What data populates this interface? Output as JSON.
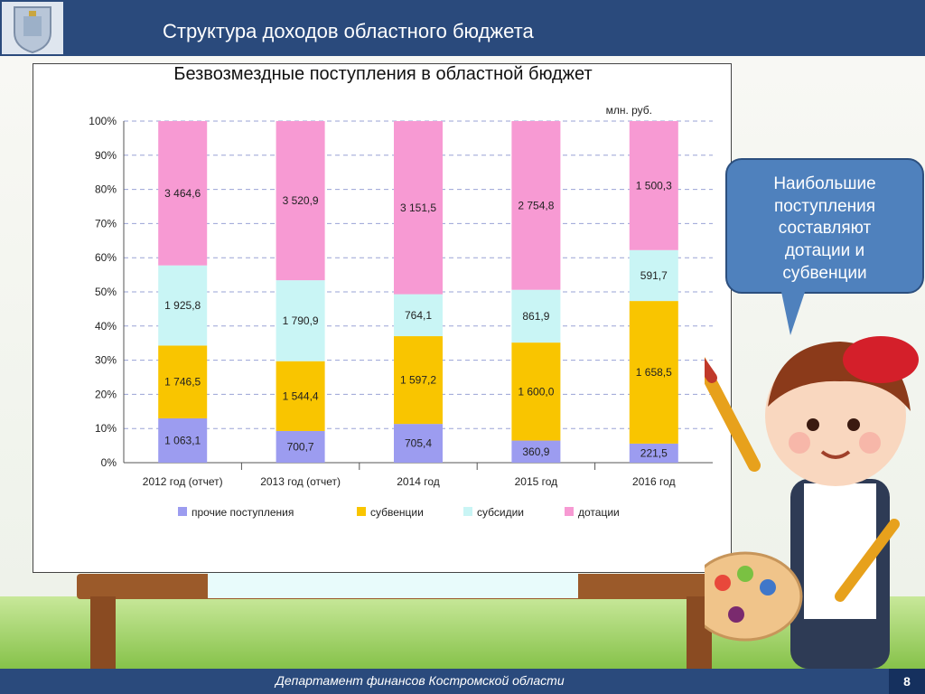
{
  "header": {
    "title": "Структура доходов областного бюджета"
  },
  "footer": {
    "text": "Департамент финансов  Костромской области",
    "page_number": "8"
  },
  "callout": {
    "lines": [
      "Наибольшие",
      "поступления",
      "составляют",
      "дотации и",
      "субвенции"
    ]
  },
  "colors": {
    "header_bg": "#2a4a7c",
    "callout_bg": "#4f81bd",
    "прочие": "#9c9cf0",
    "субвенции": "#f9c500",
    "субсидии": "#c9f5f5",
    "дотации": "#f79ad3"
  },
  "chart_data": {
    "type": "bar",
    "stacked": true,
    "normalized": true,
    "title": "Безвозмездные поступления в областной бюджет",
    "unit_label": "млн. руб.",
    "categories": [
      "2012 год (отчет)",
      "2013 год (отчет)",
      "2014 год",
      "2015 год",
      "2016 год"
    ],
    "series": [
      {
        "name": "прочие поступления",
        "values": [
          1063.1,
          700.7,
          705.4,
          360.9,
          221.5
        ],
        "labels": [
          "1 063,1",
          "700,7",
          "705,4",
          "360,9",
          "221,5"
        ],
        "color": "#9c9cf0"
      },
      {
        "name": "субвенции",
        "values": [
          1746.5,
          1544.4,
          1597.2,
          1600.0,
          1658.5
        ],
        "labels": [
          "1 746,5",
          "1 544,4",
          "1 597,2",
          "1 600,0",
          "1 658,5"
        ],
        "color": "#f9c500"
      },
      {
        "name": "субсидии",
        "values": [
          1925.8,
          1790.9,
          764.1,
          861.9,
          591.7
        ],
        "labels": [
          "1 925,8",
          "1 790,9",
          "764,1",
          "861,9",
          "591,7"
        ],
        "color": "#c9f5f5"
      },
      {
        "name": "дотации",
        "values": [
          3464.6,
          3520.9,
          3151.5,
          2754.8,
          1500.3
        ],
        "labels": [
          "3 464,6",
          "3 520,9",
          "3 151,5",
          "2 754,8",
          "1 500,3"
        ],
        "color": "#f79ad3"
      }
    ],
    "y_ticks": [
      "0%",
      "10%",
      "20%",
      "30%",
      "40%",
      "50%",
      "60%",
      "70%",
      "80%",
      "90%",
      "100%"
    ],
    "ylim": [
      0,
      100
    ],
    "grid": true,
    "legend": "bottom"
  }
}
